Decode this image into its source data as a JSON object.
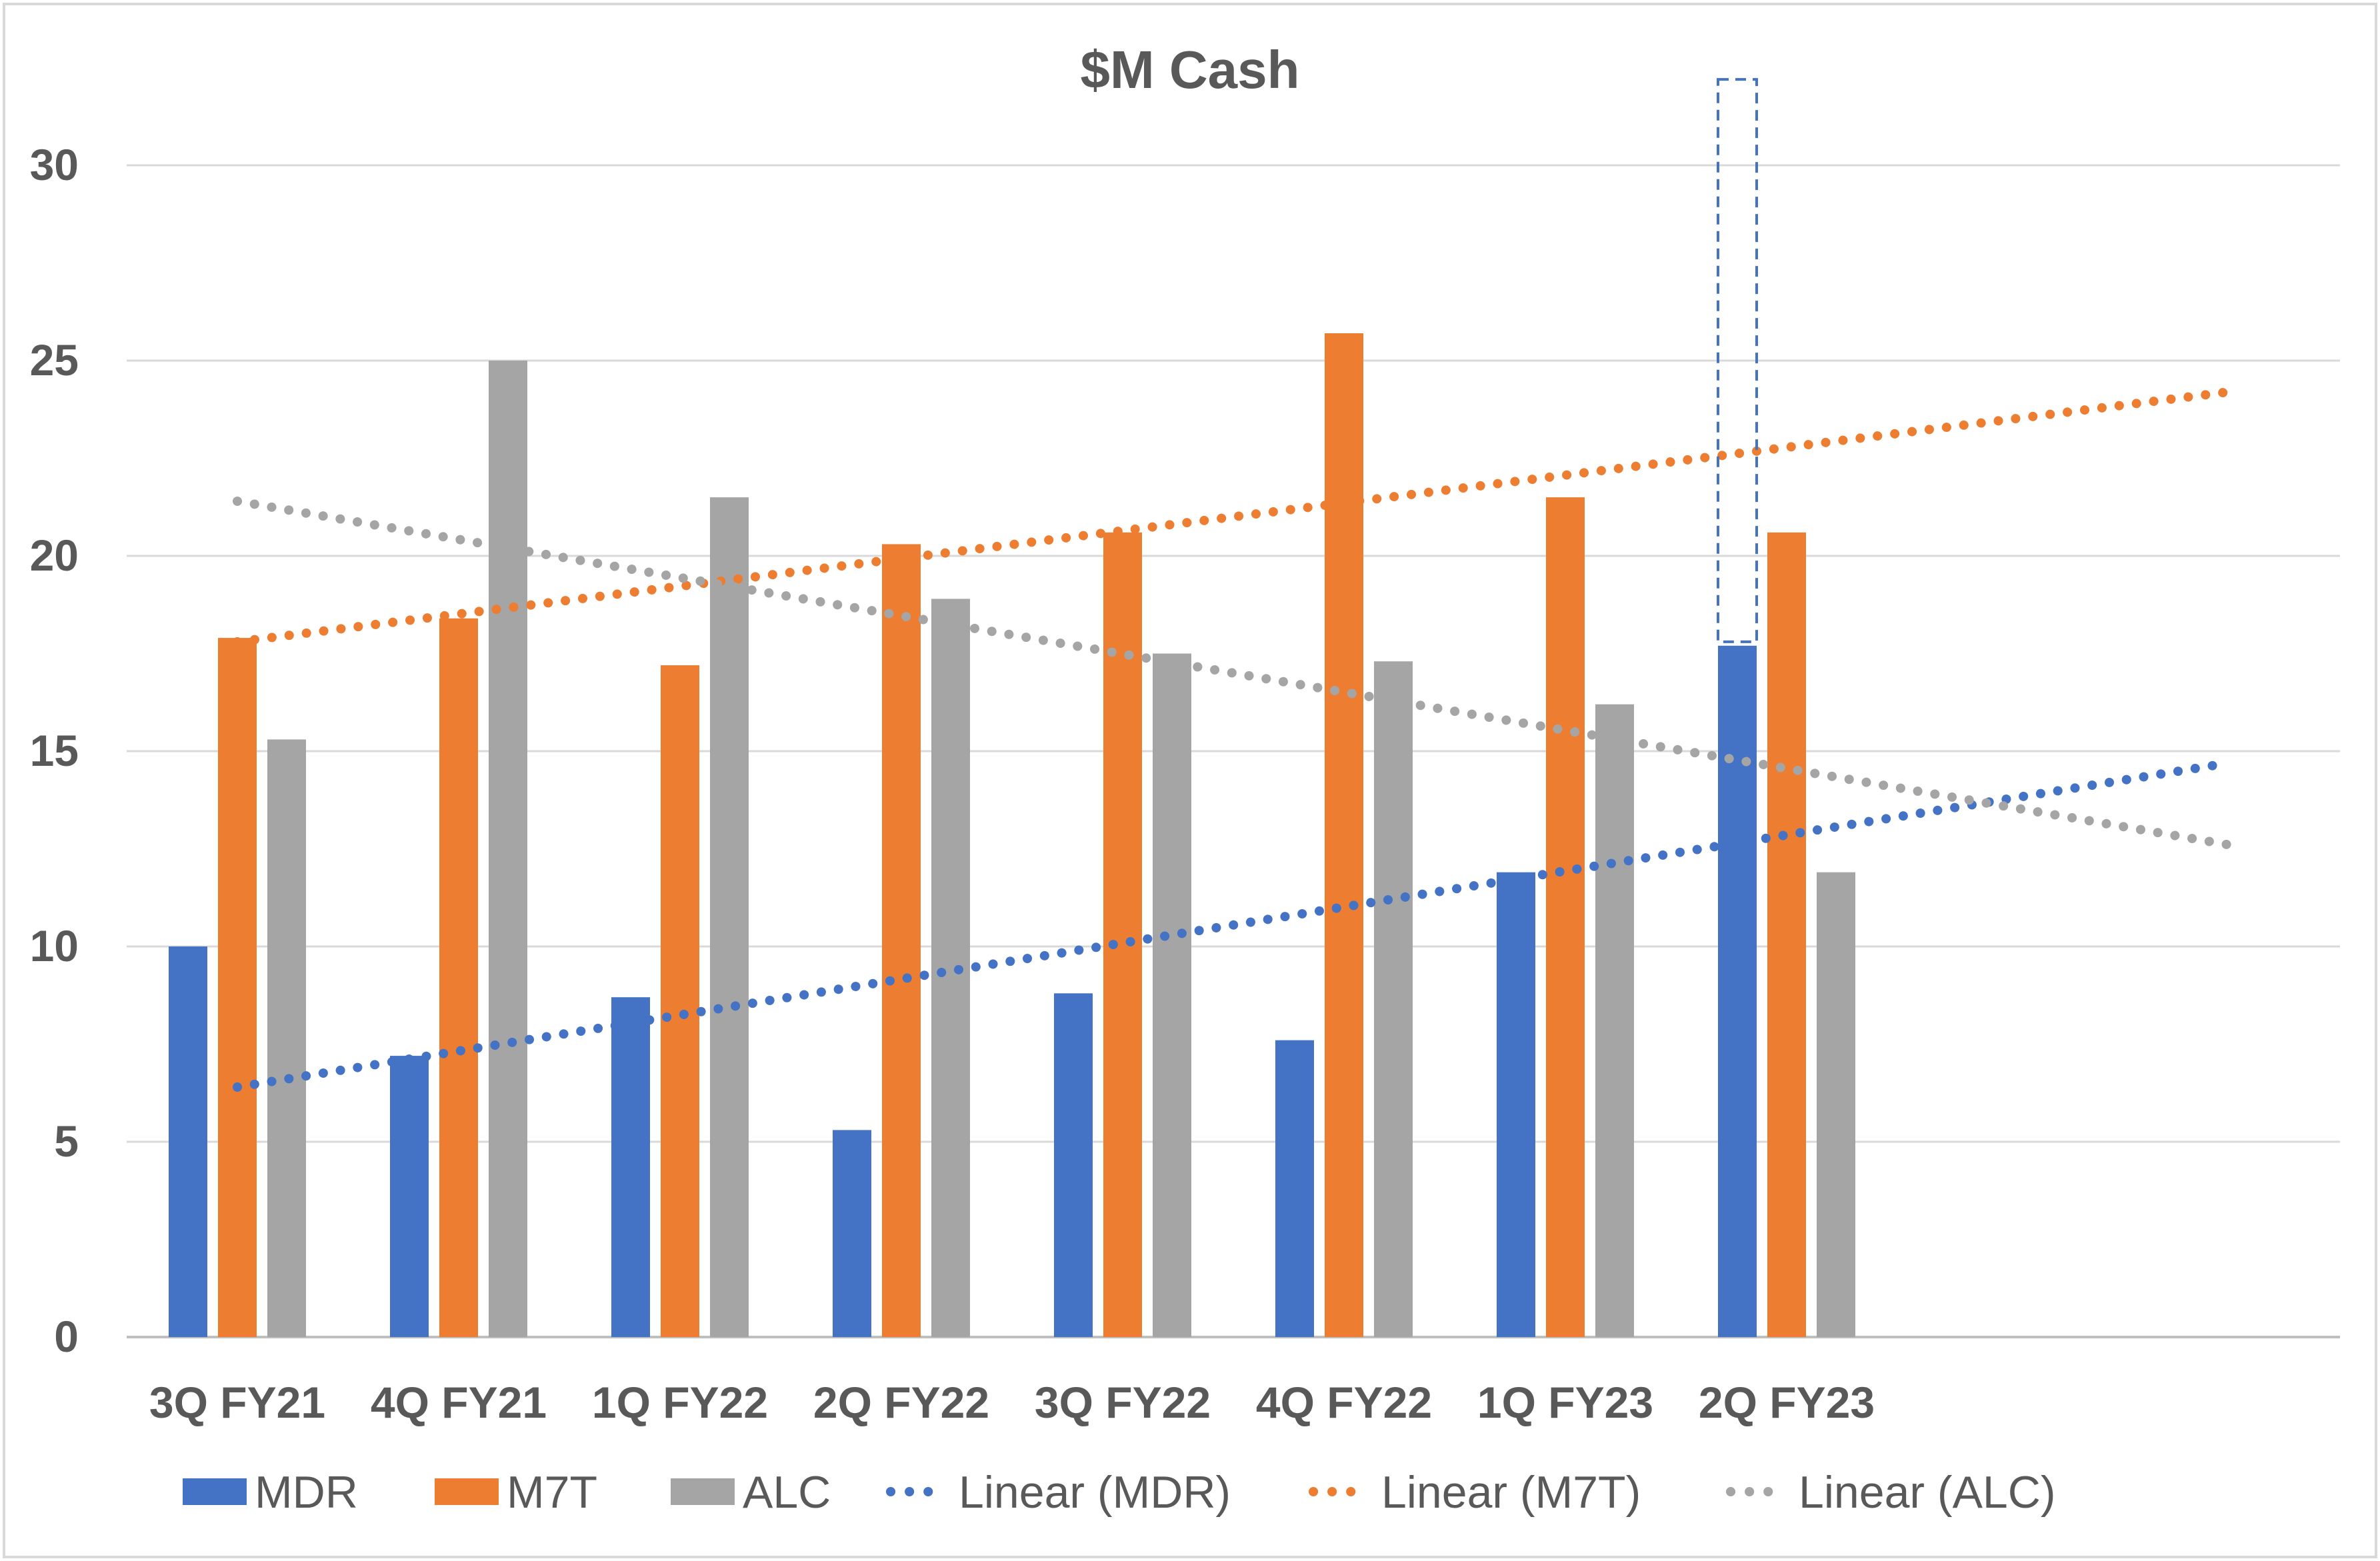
{
  "chart_data": {
    "type": "bar",
    "title": "$M Cash",
    "xlabel": "",
    "ylabel": "",
    "ylim": [
      0,
      30
    ],
    "yticks": [
      "0",
      "5",
      "10",
      "15",
      "20",
      "25",
      "30"
    ],
    "categories": [
      "3Q FY21",
      "4Q FY21",
      "1Q FY22",
      "2Q FY22",
      "3Q FY22",
      "4Q FY22",
      "1Q FY23",
      "2Q FY23"
    ],
    "extra_category_slots": 2,
    "grid": true,
    "legend_position": "bottom",
    "series": [
      {
        "name": "MDR",
        "color": "#4472C4",
        "values": [
          10.0,
          7.2,
          8.7,
          5.3,
          8.8,
          7.6,
          11.9,
          17.7
        ]
      },
      {
        "name": "M7T",
        "color": "#ED7D31",
        "values": [
          17.9,
          18.4,
          17.2,
          20.3,
          20.6,
          25.7,
          21.5,
          20.6
        ]
      },
      {
        "name": "ALC",
        "color": "#A5A5A5",
        "values": [
          15.3,
          25.0,
          21.5,
          18.9,
          17.5,
          17.3,
          16.2,
          11.9
        ]
      }
    ],
    "trendlines": [
      {
        "name": "Linear (MDR)",
        "series": "MDR",
        "color": "#4472C4",
        "start": [
          1,
          6.4
        ],
        "end": [
          10,
          14.7
        ]
      },
      {
        "name": "Linear (M7T)",
        "series": "M7T",
        "color": "#ED7D31",
        "start": [
          1,
          17.8
        ],
        "end": [
          10,
          24.2
        ]
      },
      {
        "name": "Linear (ALC)",
        "series": "ALC",
        "color": "#A5A5A5",
        "start": [
          1,
          21.4
        ],
        "end": [
          10,
          12.6
        ]
      }
    ],
    "annotation": {
      "type": "dashed-box",
      "category": "2Q FY23",
      "series": "MDR",
      "y_from": 17.8,
      "y_to": 32.2,
      "color": "#4472C4"
    }
  }
}
